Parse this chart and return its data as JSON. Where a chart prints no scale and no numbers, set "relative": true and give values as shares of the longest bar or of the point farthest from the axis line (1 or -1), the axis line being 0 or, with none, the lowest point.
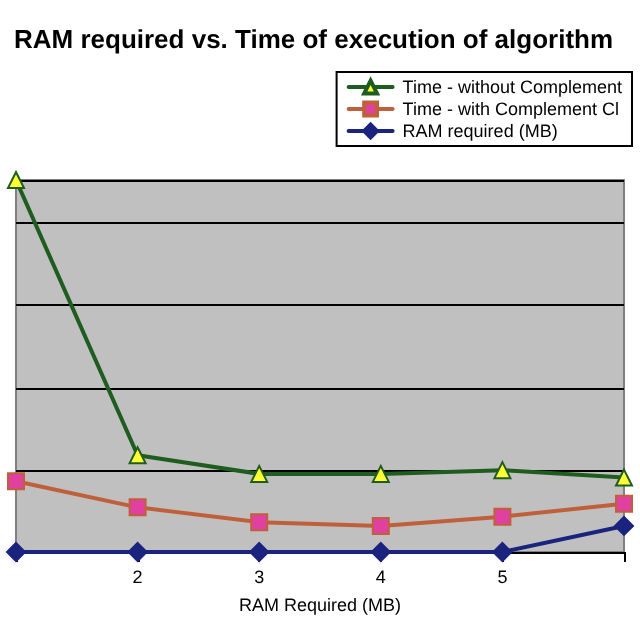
{
  "chart_data": {
    "type": "line",
    "title": "RAM required vs. Time of execution of algorithm",
    "xlabel": "RAM Required (MB)",
    "relative": true,
    "x": [
      1,
      2,
      3,
      4,
      5,
      6
    ],
    "xlim": [
      1,
      6
    ],
    "xticks": [
      {
        "value": 1,
        "label": null
      },
      2,
      3,
      4,
      5,
      {
        "value": 6,
        "label": null
      }
    ],
    "grid": "y",
    "legend": "top right",
    "line_style": "solid",
    "series": [
      {
        "name": "Time - without Complement",
        "color": "#1f5c1f",
        "marker": "triangle",
        "values": [
          1,
          0.26,
          0.21,
          0.21,
          0.22,
          0.2
        ]
      },
      {
        "name": "Time - with Complement Cl",
        "color": "#c0603a",
        "marker": "square",
        "values": [
          0.19,
          0.12,
          0.08,
          0.07,
          0.095,
          0.13
        ]
      },
      {
        "name": "RAM required (MB)",
        "color": "#1a237e",
        "marker": "diamond",
        "values": [
          0,
          0,
          0,
          0,
          0,
          0.07
        ]
      }
    ]
  }
}
